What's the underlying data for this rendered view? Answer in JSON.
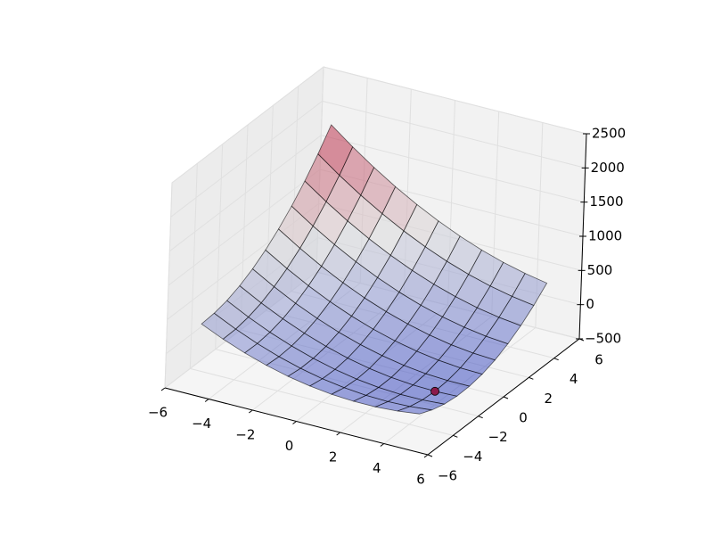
{
  "chart_data": {
    "type": "surface",
    "x": [
      -5,
      -4,
      -3,
      -2,
      -1,
      0,
      1,
      2,
      3,
      4,
      5
    ],
    "y": [
      -5,
      -4,
      -3,
      -2,
      -1,
      0,
      1,
      2,
      3,
      4,
      5
    ],
    "z": [
      [
        375,
        235,
        115,
        15,
        -65,
        -125,
        -165,
        -185,
        -185,
        -165,
        -125
      ],
      [
        390,
        240,
        110,
        0,
        -90,
        -160,
        -210,
        -240,
        -250,
        -240,
        -210
      ],
      [
        435,
        275,
        135,
        15,
        -85,
        -165,
        -225,
        -265,
        -285,
        -285,
        -265
      ],
      [
        510,
        340,
        190,
        60,
        -50,
        -140,
        -210,
        -260,
        -290,
        -300,
        -290
      ],
      [
        615,
        435,
        275,
        135,
        15,
        -85,
        -165,
        -225,
        -265,
        -285,
        -285
      ],
      [
        750,
        560,
        390,
        240,
        110,
        0,
        -90,
        -160,
        -210,
        -240,
        -250
      ],
      [
        915,
        715,
        535,
        375,
        235,
        115,
        15,
        -65,
        -125,
        -165,
        -185
      ],
      [
        1110,
        900,
        710,
        540,
        390,
        260,
        150,
        60,
        -10,
        -60,
        -90
      ],
      [
        1335,
        1115,
        915,
        735,
        575,
        435,
        315,
        215,
        135,
        75,
        35
      ],
      [
        1590,
        1360,
        1150,
        960,
        790,
        640,
        510,
        400,
        310,
        240,
        190
      ],
      [
        1875,
        1635,
        1415,
        1215,
        1035,
        875,
        735,
        615,
        515,
        435,
        375
      ]
    ],
    "colormap": "coolwarm",
    "alpha": 0.55,
    "points": {
      "x": [
        4
      ],
      "y": [
        -2
      ],
      "z": [
        -300
      ],
      "color": "#8b1a4a"
    },
    "xlim": [
      -6,
      6
    ],
    "ylim": [
      -6,
      6
    ],
    "zlim": [
      -500,
      2500
    ],
    "xticks": [
      {
        "value": -6,
        "label": "−6"
      },
      {
        "value": -4,
        "label": "−4"
      },
      {
        "value": -2,
        "label": "−2"
      },
      0,
      2,
      4,
      6
    ],
    "yticks": [
      {
        "value": -6,
        "label": "−6"
      },
      {
        "value": -4,
        "label": "−4"
      },
      {
        "value": -2,
        "label": "−2"
      },
      0,
      2,
      4,
      6
    ],
    "zticks": [
      {
        "value": -500,
        "label": "−500"
      },
      0,
      500,
      1000,
      1500,
      2000,
      2500
    ],
    "grid": true
  }
}
